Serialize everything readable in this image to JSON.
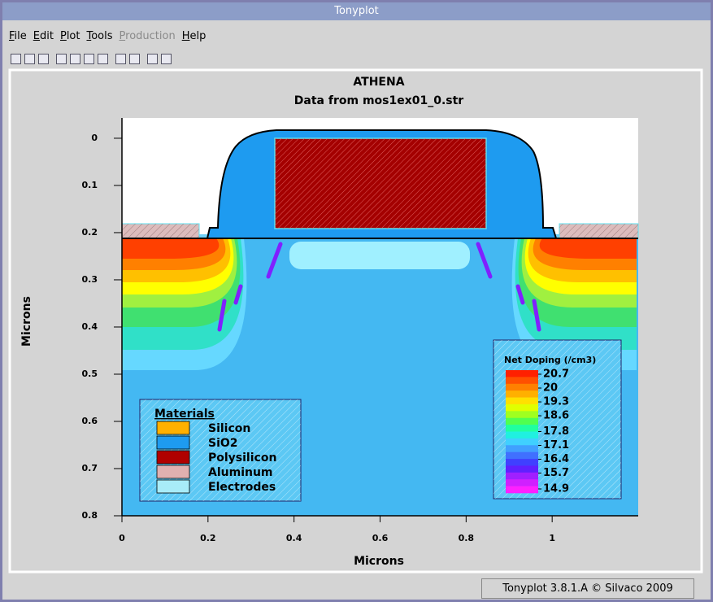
{
  "window": {
    "title": "Tonyplot"
  },
  "menu": [
    "File",
    "Edit",
    "Plot",
    "Tools",
    "Production",
    "Help"
  ],
  "menu_disabled": [
    false,
    false,
    false,
    false,
    true,
    false
  ],
  "chart_data": {
    "type": "structure",
    "title": "ATHENA",
    "subtitle": "Data from mos1ex01_0.str",
    "x_label": "Microns",
    "y_label": "Microns",
    "xlim": [
      0,
      1.2
    ],
    "ylim": [
      -0.043,
      0.8
    ],
    "y_inverted": true,
    "xticks": [
      0,
      0.2,
      0.4,
      0.6,
      0.8,
      1
    ],
    "yticks": [
      0,
      0.1,
      0.2,
      0.3,
      0.4,
      0.5,
      0.6,
      0.7,
      0.8
    ],
    "materials": {
      "title": "Materials",
      "items": [
        {
          "name": "Silicon",
          "color": "#ffb000"
        },
        {
          "name": "SiO2",
          "color": "#1e9bf0"
        },
        {
          "name": "Polysilicon",
          "color": "#b00000"
        },
        {
          "name": "Aluminum",
          "color": "#e0b0b0"
        },
        {
          "name": "Electrodes",
          "color": "#a8ecf8"
        }
      ]
    },
    "colorbar": {
      "title": "Net Doping (/cm3)",
      "ticks": [
        20.7,
        20,
        19.3,
        18.6,
        17.8,
        17.1,
        16.4,
        15.7,
        14.9
      ],
      "colors": [
        "#ff2000",
        "#ff5000",
        "#ff8000",
        "#ffb000",
        "#ffe000",
        "#e0ff00",
        "#a0ff20",
        "#50ff50",
        "#20ffa0",
        "#20f0e0",
        "#40d0ff",
        "#40a0ff",
        "#4070ff",
        "#4040ff",
        "#6020ff",
        "#a020ff",
        "#d020ff",
        "#ff20ff"
      ]
    }
  },
  "status": "Tonyplot 3.8.1.A © Silvaco 2009"
}
